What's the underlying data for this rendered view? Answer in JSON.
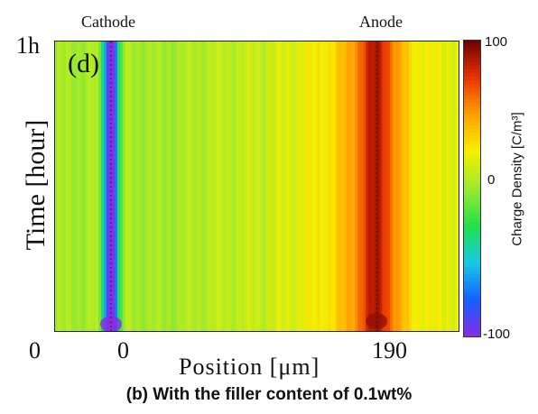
{
  "panel_label": "(d)",
  "top_labels": {
    "left": "Cathode",
    "right": "Anode"
  },
  "caption": "(b) With the filler content of 0.1wt%",
  "chart_data": {
    "type": "heatmap",
    "xlabel": "Position [μm]",
    "ylabel": "Time [hour]",
    "x_ticks": [
      "0",
      "190"
    ],
    "x_tick_values": [
      0,
      190
    ],
    "x_origin_label": "0",
    "y_ticks": [
      "0",
      "1h"
    ],
    "y_tick_values": [
      0,
      1
    ],
    "colorbar": {
      "label": "Charge Density [C/m³]",
      "min": -100,
      "max": 100,
      "ticks": [
        "100",
        "0",
        "-100"
      ],
      "tick_values": [
        100,
        0,
        -100
      ]
    },
    "colormap": [
      "#8b2be2",
      "#1560ff",
      "#17c9e6",
      "#22e04a",
      "#9bea2e",
      "#f6f000",
      "#ffa000",
      "#e83000",
      "#6b0000"
    ],
    "xlim": [
      -40,
      250
    ],
    "ylim": [
      0,
      1
    ],
    "profile_x": [
      -40,
      -20,
      -10,
      -5,
      -2,
      2,
      5,
      10,
      20,
      40,
      70,
      110,
      140,
      160,
      168,
      175,
      180,
      185,
      188,
      192,
      195,
      200,
      205,
      215,
      230,
      250
    ],
    "profile_value": [
      2,
      3,
      5,
      -40,
      -95,
      -95,
      -40,
      5,
      3,
      2,
      8,
      12,
      22,
      32,
      42,
      55,
      68,
      80,
      85,
      85,
      78,
      65,
      48,
      28,
      22,
      20
    ],
    "anomalies": [
      {
        "x": 0,
        "t": 0.03,
        "value": -100
      },
      {
        "x": 190,
        "t": 0.04,
        "value": 92
      }
    ]
  }
}
